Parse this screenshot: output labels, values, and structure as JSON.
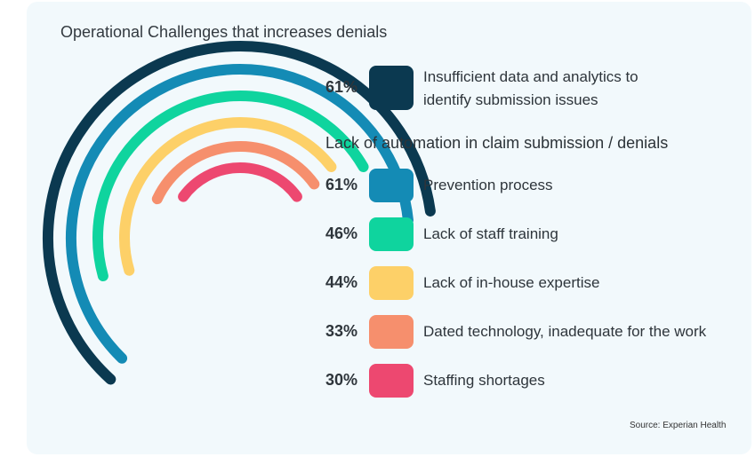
{
  "chart_data": {
    "type": "radial-bar",
    "title": "Operational Challenges that increases denials",
    "group_heading": "Lack of automation in claim submission / denials",
    "items": [
      {
        "label_lines": [
          "Insufficient data and analytics to",
          "identify submission issues"
        ],
        "value": 61,
        "display": "61%",
        "color": "#0b3950"
      },
      {
        "label_lines": [
          "Prevention process"
        ],
        "value": 61,
        "display": "61%",
        "color": "#148bb5"
      },
      {
        "label_lines": [
          "Lack of staff training"
        ],
        "value": 46,
        "display": "46%",
        "color": "#0fd49e"
      },
      {
        "label_lines": [
          "Lack of in-house expertise"
        ],
        "value": 44,
        "display": "44%",
        "color": "#fdd068"
      },
      {
        "label_lines": [
          "Dated technology, inadequate for the work"
        ],
        "value": 33,
        "display": "33%",
        "color": "#f68f6d"
      },
      {
        "label_lines": [
          "Staffing shortages"
        ],
        "value": 30,
        "display": "30%",
        "color": "#ed4870"
      }
    ],
    "source": "Source: Experian Health"
  }
}
